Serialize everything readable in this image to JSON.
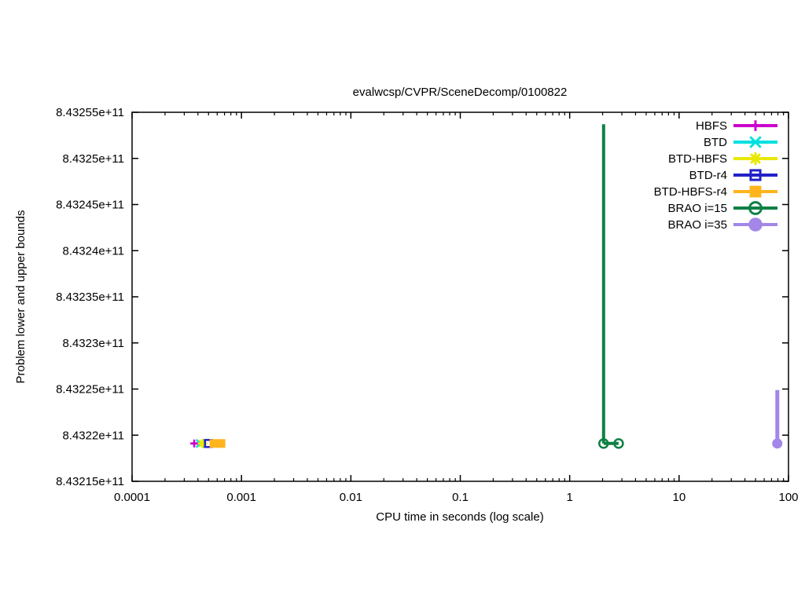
{
  "chart_data": {
    "type": "line",
    "title": "evalwcsp/CVPR/SceneDecomp/0100822",
    "xlabel": "CPU time in seconds (log scale)",
    "ylabel": "Problem lower and upper bounds",
    "x_scale": "log",
    "y_scale": "linear",
    "grid": false,
    "background": "#ffffff",
    "axis_color": "#000000",
    "legend_position": "top-right-inside",
    "xlim": [
      0.0001,
      100
    ],
    "xticks": [
      0.0001,
      0.001,
      0.01,
      0.1,
      1,
      10,
      100
    ],
    "xtick_labels": [
      "0.0001",
      "0.001",
      "0.01",
      "0.1",
      "1",
      "10",
      "100"
    ],
    "ylim": [
      843215000000,
      843255000000
    ],
    "yticks": [
      843215000000,
      843220000000,
      843225000000,
      843230000000,
      843235000000,
      843240000000,
      843245000000,
      843250000000,
      843255000000
    ],
    "ytick_labels": [
      "8.43215e+11",
      "8.4322e+11",
      "8.43225e+11",
      "8.4323e+11",
      "8.43235e+11",
      "8.4324e+11",
      "8.43245e+11",
      "8.4325e+11",
      "8.43255e+11"
    ],
    "series": [
      {
        "name": "HBFS",
        "color": "#cc00cc",
        "marker": "plus",
        "lw": 3,
        "ms": 10,
        "segments": [
          [
            [
              0.00035,
              843219100000
            ],
            [
              0.00041,
              843219100000
            ]
          ]
        ],
        "markers": [
          [
            0.00037,
            843219100000
          ]
        ]
      },
      {
        "name": "BTD",
        "color": "#00e0e0",
        "marker": "cross",
        "lw": 3,
        "ms": 10,
        "segments": [],
        "markers": [
          [
            0.00042,
            843219100000
          ]
        ]
      },
      {
        "name": "BTD-HBFS",
        "color": "#e8e800",
        "marker": "star",
        "lw": 3,
        "ms": 12,
        "segments": [],
        "markers": [
          [
            0.00044,
            843219100000
          ]
        ]
      },
      {
        "name": "BTD-r4",
        "color": "#2222c8",
        "marker": "square-open",
        "lw": 3,
        "ms": 9,
        "segments": [],
        "markers": [
          [
            0.0005,
            843219100000
          ]
        ]
      },
      {
        "name": "BTD-HBFS-r4",
        "color": "#ffb41e",
        "marker": "square-filled",
        "lw": 3,
        "ms": 11,
        "segments": [],
        "markers": [
          [
            0.00056,
            843219100000
          ],
          [
            0.00065,
            843219100000
          ]
        ]
      },
      {
        "name": "BRAO i=15",
        "color": "#0e8044",
        "marker": "circle-open",
        "lw": 4,
        "ms": 11,
        "segments": [
          [
            [
              2.04,
              843253700000
            ],
            [
              2.04,
              843219100000
            ]
          ],
          [
            [
              2.04,
              843219100000
            ],
            [
              2.8,
              843219100000
            ]
          ]
        ],
        "markers": [
          [
            2.04,
            843219100000
          ],
          [
            2.8,
            843219100000
          ]
        ]
      },
      {
        "name": "BRAO i=35",
        "color": "#a287e8",
        "marker": "circle-filled",
        "lw": 5,
        "ms": 13,
        "segments": [
          [
            [
              79,
              843224900000
            ],
            [
              79,
              843219100000
            ]
          ]
        ],
        "markers": [
          [
            79,
            843219100000
          ]
        ]
      }
    ]
  }
}
